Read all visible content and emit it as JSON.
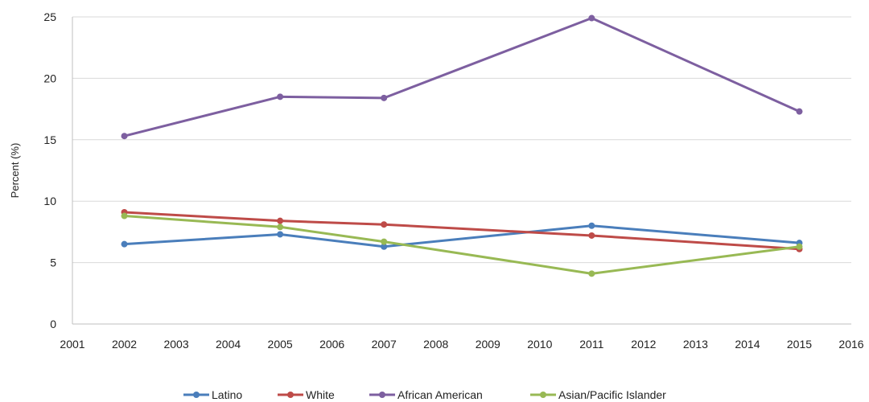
{
  "chart_data": {
    "type": "line",
    "title": "",
    "xlabel": "",
    "ylabel": "Percent (%)",
    "xlim": [
      2001,
      2016
    ],
    "ylim": [
      0,
      25
    ],
    "x_ticks": [
      2001,
      2002,
      2003,
      2004,
      2005,
      2006,
      2007,
      2008,
      2009,
      2010,
      2011,
      2012,
      2013,
      2014,
      2015,
      2016
    ],
    "y_ticks": [
      0,
      5,
      10,
      15,
      20,
      25
    ],
    "grid": "horizontal",
    "legend": "bottom",
    "series": [
      {
        "name": "Latino",
        "color": "#4a7ebb",
        "x": [
          2002,
          2005,
          2007,
          2011,
          2015
        ],
        "y": [
          6.5,
          7.3,
          6.3,
          8.0,
          6.6
        ]
      },
      {
        "name": "White",
        "color": "#be4b48",
        "x": [
          2002,
          2005,
          2007,
          2011,
          2015
        ],
        "y": [
          9.1,
          8.4,
          8.1,
          7.2,
          6.1
        ]
      },
      {
        "name": "African American",
        "color": "#7d5fa0",
        "x": [
          2002,
          2005,
          2007,
          2011,
          2015
        ],
        "y": [
          15.3,
          18.5,
          18.4,
          24.9,
          17.3
        ]
      },
      {
        "name": "Asian/Pacific Islander",
        "color": "#98b954",
        "x": [
          2002,
          2005,
          2007,
          2011,
          2015
        ],
        "y": [
          8.8,
          7.9,
          6.7,
          4.1,
          6.3
        ]
      }
    ]
  }
}
